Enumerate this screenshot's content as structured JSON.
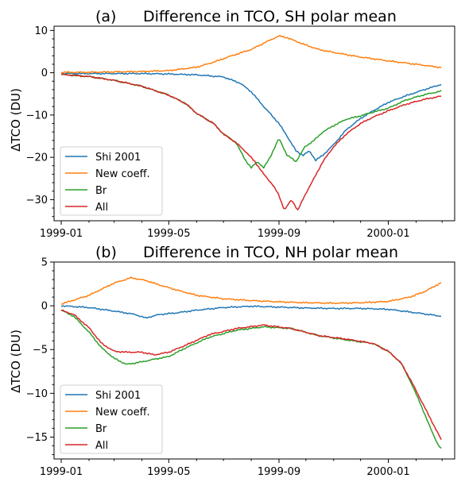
{
  "chart_data": [
    {
      "type": "line",
      "title_prefix": "(a)",
      "title": "Difference in TCO, SH polar mean",
      "ylabel": "ΔTCO (DU)",
      "ylim": [
        -35,
        11
      ],
      "yticks": [
        10,
        0,
        -10,
        -20,
        -30
      ],
      "xlim": [
        "1998-12-24",
        "2000-03-15"
      ],
      "xticks": [
        "1999-01",
        "1999-05",
        "1999-09",
        "2000-01"
      ],
      "grid": false,
      "legend": "bottom-left",
      "series": [
        {
          "name": "Shi 2001",
          "color": "#1f77b4",
          "points": [
            [
              "1999-01-01",
              -0.2
            ],
            [
              "1999-02-01",
              -0.2
            ],
            [
              "1999-03-01",
              -0.2
            ],
            [
              "1999-04-01",
              -0.2
            ],
            [
              "1999-05-01",
              -0.3
            ],
            [
              "1999-06-01",
              -0.5
            ],
            [
              "1999-07-01",
              -1.0
            ],
            [
              "1999-07-20",
              -2.5
            ],
            [
              "1999-08-01",
              -4.5
            ],
            [
              "1999-08-15",
              -8
            ],
            [
              "1999-09-01",
              -12
            ],
            [
              "1999-09-10",
              -15
            ],
            [
              "1999-09-20",
              -18.5
            ],
            [
              "1999-09-28",
              -19.5
            ],
            [
              "1999-10-05",
              -18.5
            ],
            [
              "1999-10-12",
              -20.7
            ],
            [
              "1999-10-20",
              -19.5
            ],
            [
              "1999-11-01",
              -17
            ],
            [
              "1999-11-15",
              -13.5
            ],
            [
              "1999-12-01",
              -10.8
            ],
            [
              "1999-12-15",
              -9
            ],
            [
              "2000-01-01",
              -7
            ],
            [
              "2000-01-20",
              -5.5
            ],
            [
              "2000-02-10",
              -4
            ],
            [
              "2000-03-01",
              -2.7
            ]
          ]
        },
        {
          "name": "New coeff.",
          "color": "#ff7f0e",
          "points": [
            [
              "1999-01-01",
              0.1
            ],
            [
              "1999-02-01",
              0.1
            ],
            [
              "1999-03-01",
              0.2
            ],
            [
              "1999-04-01",
              0.3
            ],
            [
              "1999-05-01",
              0.5
            ],
            [
              "1999-06-01",
              1.3
            ],
            [
              "1999-06-20",
              2.5
            ],
            [
              "1999-07-10",
              4
            ],
            [
              "1999-08-01",
              5.5
            ],
            [
              "1999-08-20",
              7.5
            ],
            [
              "1999-09-01",
              8.7
            ],
            [
              "1999-09-10",
              8.3
            ],
            [
              "1999-09-25",
              7
            ],
            [
              "1999-10-15",
              5.5
            ],
            [
              "1999-11-01",
              4.8
            ],
            [
              "1999-12-01",
              3.7
            ],
            [
              "2000-01-01",
              2.8
            ],
            [
              "2000-02-01",
              2.0
            ],
            [
              "2000-03-01",
              1.2
            ]
          ]
        },
        {
          "name": "Br",
          "color": "#2ca02c",
          "points": [
            [
              "1999-01-01",
              -0.4
            ],
            [
              "1999-02-01",
              -0.9
            ],
            [
              "1999-03-01",
              -1.8
            ],
            [
              "1999-04-01",
              -3.2
            ],
            [
              "1999-05-01",
              -5.3
            ],
            [
              "1999-05-20",
              -7.3
            ],
            [
              "1999-06-01",
              -9.6
            ],
            [
              "1999-06-20",
              -12
            ],
            [
              "1999-07-01",
              -14.5
            ],
            [
              "1999-07-15",
              -16.5
            ],
            [
              "1999-07-25",
              -20.5
            ],
            [
              "1999-08-01",
              -22.5
            ],
            [
              "1999-08-08",
              -21
            ],
            [
              "1999-08-15",
              -22.5
            ],
            [
              "1999-08-22",
              -20
            ],
            [
              "1999-09-01",
              -15.5
            ],
            [
              "1999-09-10",
              -19.5
            ],
            [
              "1999-09-20",
              -21
            ],
            [
              "1999-09-30",
              -17.5
            ],
            [
              "1999-10-10",
              -16
            ],
            [
              "1999-10-20",
              -14
            ],
            [
              "1999-11-01",
              -12.5
            ],
            [
              "1999-11-15",
              -11
            ],
            [
              "1999-12-01",
              -10.2
            ],
            [
              "1999-12-15",
              -9.3
            ],
            [
              "2000-01-01",
              -8.4
            ],
            [
              "2000-01-20",
              -6.5
            ],
            [
              "2000-02-10",
              -5.2
            ],
            [
              "2000-03-01",
              -4.3
            ]
          ]
        },
        {
          "name": "All",
          "color": "#d62728",
          "points": [
            [
              "1999-01-01",
              -0.4
            ],
            [
              "1999-02-01",
              -0.9
            ],
            [
              "1999-03-01",
              -1.8
            ],
            [
              "1999-04-01",
              -3.2
            ],
            [
              "1999-05-01",
              -5.3
            ],
            [
              "1999-05-20",
              -7.3
            ],
            [
              "1999-06-01",
              -9.6
            ],
            [
              "1999-06-20",
              -12
            ],
            [
              "1999-07-01",
              -14.5
            ],
            [
              "1999-07-15",
              -16.5
            ],
            [
              "1999-07-25",
              -18.5
            ],
            [
              "1999-08-05",
              -21
            ],
            [
              "1999-08-15",
              -24
            ],
            [
              "1999-08-25",
              -26.5
            ],
            [
              "1999-09-01",
              -29
            ],
            [
              "1999-09-07",
              -32.5
            ],
            [
              "1999-09-15",
              -30
            ],
            [
              "1999-09-22",
              -32.5
            ],
            [
              "1999-10-01",
              -28.5
            ],
            [
              "1999-10-10",
              -25
            ],
            [
              "1999-10-20",
              -21
            ],
            [
              "1999-11-01",
              -17.5
            ],
            [
              "1999-11-15",
              -14.5
            ],
            [
              "1999-12-01",
              -12
            ],
            [
              "1999-12-15",
              -10.5
            ],
            [
              "2000-01-01",
              -9
            ],
            [
              "2000-01-20",
              -7.5
            ],
            [
              "2000-02-10",
              -6.3
            ],
            [
              "2000-03-01",
              -5.5
            ]
          ]
        }
      ]
    },
    {
      "type": "line",
      "title_prefix": "(b)",
      "title": "Difference in TCO, NH polar mean",
      "ylabel": "ΔTCO (DU)",
      "ylim": [
        -17.5,
        5
      ],
      "yticks": [
        5,
        0,
        -5,
        -10,
        -15
      ],
      "xlim": [
        "1998-12-24",
        "2000-03-15"
      ],
      "xticks": [
        "1999-01",
        "1999-05",
        "1999-09",
        "2000-01"
      ],
      "grid": false,
      "legend": "bottom-left",
      "series": [
        {
          "name": "Shi 2001",
          "color": "#1f77b4",
          "points": [
            [
              "1999-01-01",
              0.0
            ],
            [
              "1999-02-01",
              -0.2
            ],
            [
              "1999-03-01",
              -0.6
            ],
            [
              "1999-03-25",
              -1.0
            ],
            [
              "1999-04-05",
              -1.4
            ],
            [
              "1999-04-20",
              -1.0
            ],
            [
              "1999-05-10",
              -0.8
            ],
            [
              "1999-06-01",
              -0.5
            ],
            [
              "1999-07-01",
              -0.2
            ],
            [
              "1999-08-01",
              -0.05
            ],
            [
              "1999-09-01",
              -0.15
            ],
            [
              "1999-10-01",
              -0.25
            ],
            [
              "1999-11-01",
              -0.3
            ],
            [
              "1999-12-01",
              -0.3
            ],
            [
              "2000-01-01",
              -0.4
            ],
            [
              "2000-02-01",
              -0.8
            ],
            [
              "2000-03-01",
              -1.2
            ]
          ]
        },
        {
          "name": "New coeff.",
          "color": "#ff7f0e",
          "points": [
            [
              "1999-01-01",
              0.2
            ],
            [
              "1999-02-01",
              1.2
            ],
            [
              "1999-03-01",
              2.6
            ],
            [
              "1999-03-20",
              3.2
            ],
            [
              "1999-04-05",
              2.9
            ],
            [
              "1999-04-20",
              2.4
            ],
            [
              "1999-05-10",
              1.8
            ],
            [
              "1999-06-01",
              1.2
            ],
            [
              "1999-07-01",
              0.8
            ],
            [
              "1999-08-01",
              0.6
            ],
            [
              "1999-09-01",
              0.45
            ],
            [
              "1999-10-01",
              0.35
            ],
            [
              "1999-11-01",
              0.3
            ],
            [
              "1999-12-01",
              0.35
            ],
            [
              "2000-01-01",
              0.5
            ],
            [
              "2000-01-25",
              1.0
            ],
            [
              "2000-02-10",
              1.6
            ],
            [
              "2000-03-01",
              2.7
            ]
          ]
        },
        {
          "name": "Br",
          "color": "#2ca02c",
          "points": [
            [
              "1999-01-01",
              -0.5
            ],
            [
              "1999-01-15",
              -1.2
            ],
            [
              "1999-02-01",
              -3.0
            ],
            [
              "1999-02-15",
              -4.8
            ],
            [
              "1999-03-01",
              -6.0
            ],
            [
              "1999-03-15",
              -6.7
            ],
            [
              "1999-04-01",
              -6.4
            ],
            [
              "1999-04-15",
              -6.1
            ],
            [
              "1999-05-01",
              -5.8
            ],
            [
              "1999-05-20",
              -4.8
            ],
            [
              "1999-06-15",
              -3.6
            ],
            [
              "1999-07-15",
              -2.8
            ],
            [
              "1999-08-15",
              -2.4
            ],
            [
              "1999-09-15",
              -2.6
            ],
            [
              "1999-10-15",
              -3.4
            ],
            [
              "1999-11-15",
              -3.9
            ],
            [
              "1999-12-15",
              -4.3
            ],
            [
              "2000-01-01",
              -5.2
            ],
            [
              "2000-01-15",
              -6.5
            ],
            [
              "2000-01-25",
              -8.5
            ],
            [
              "2000-02-05",
              -11
            ],
            [
              "2000-02-15",
              -13.5
            ],
            [
              "2000-02-25",
              -15.8
            ],
            [
              "2000-03-01",
              -16.5
            ]
          ]
        },
        {
          "name": "All",
          "color": "#d62728",
          "points": [
            [
              "1999-01-01",
              -0.5
            ],
            [
              "1999-01-15",
              -1.0
            ],
            [
              "1999-02-01",
              -2.5
            ],
            [
              "1999-02-15",
              -4.3
            ],
            [
              "1999-03-01",
              -5.2
            ],
            [
              "1999-03-15",
              -5.3
            ],
            [
              "1999-04-01",
              -5.3
            ],
            [
              "1999-04-15",
              -5.6
            ],
            [
              "1999-05-01",
              -5.3
            ],
            [
              "1999-05-20",
              -4.5
            ],
            [
              "1999-06-15",
              -3.3
            ],
            [
              "1999-07-15",
              -2.6
            ],
            [
              "1999-08-15",
              -2.2
            ],
            [
              "1999-09-15",
              -2.6
            ],
            [
              "1999-10-15",
              -3.4
            ],
            [
              "1999-11-15",
              -3.8
            ],
            [
              "1999-12-15",
              -4.3
            ],
            [
              "2000-01-01",
              -5.2
            ],
            [
              "2000-01-15",
              -6.5
            ],
            [
              "2000-01-25",
              -8.3
            ],
            [
              "2000-02-05",
              -10.5
            ],
            [
              "2000-02-15",
              -12.5
            ],
            [
              "2000-02-25",
              -14.5
            ],
            [
              "2000-03-01",
              -15.5
            ]
          ]
        }
      ]
    }
  ]
}
